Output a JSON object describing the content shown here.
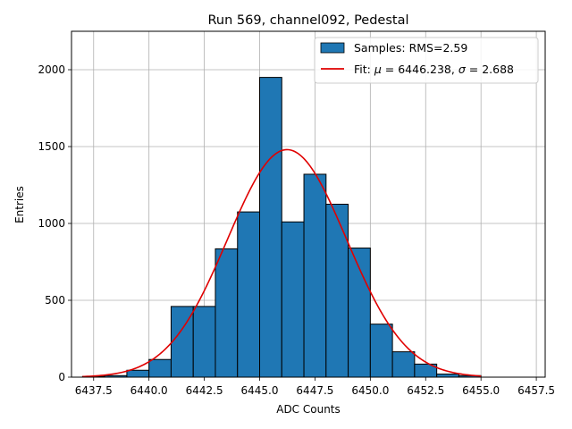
{
  "chart_data": {
    "type": "bar",
    "title": "Run 569, channel092, Pedestal",
    "xlabel": "ADC Counts",
    "ylabel": "Entries",
    "xlim": [
      6436.5,
      6457.9
    ],
    "ylim": [
      0,
      2250
    ],
    "xticks": [
      6437.5,
      6440.0,
      6442.5,
      6445.0,
      6447.5,
      6450.0,
      6452.5,
      6455.0,
      6457.5
    ],
    "xtick_labels": [
      "6437.5",
      "6440.0",
      "6442.5",
      "6445.0",
      "6447.5",
      "6450.0",
      "6452.5",
      "6455.0",
      "6457.5"
    ],
    "yticks": [
      0,
      500,
      1000,
      1500,
      2000
    ],
    "ytick_labels": [
      "0",
      "500",
      "1000",
      "1500",
      "2000"
    ],
    "grid": true,
    "legend_position": "top-right",
    "histogram": {
      "name": "Samples: RMS=2.59",
      "color": "#1f77b4",
      "bin_edges": [
        6437,
        6438,
        6439,
        6440,
        6441,
        6442,
        6443,
        6444,
        6445,
        6446,
        6447,
        6448,
        6449,
        6450,
        6451,
        6452,
        6453,
        6454,
        6455
      ],
      "counts": [
        5,
        10,
        45,
        115,
        460,
        460,
        835,
        1075,
        1950,
        1010,
        1320,
        1125,
        840,
        345,
        165,
        85,
        20,
        10
      ]
    },
    "fit": {
      "label_prefix": "Fit: ",
      "mu_symbol": "μ",
      "sigma_symbol": "σ",
      "mu_text": "6446.238",
      "sigma_text": "2.688",
      "mu": 6446.238,
      "sigma": 2.688,
      "amplitude": 1480,
      "x_range": [
        6437,
        6455
      ],
      "color": "#e00000"
    }
  }
}
